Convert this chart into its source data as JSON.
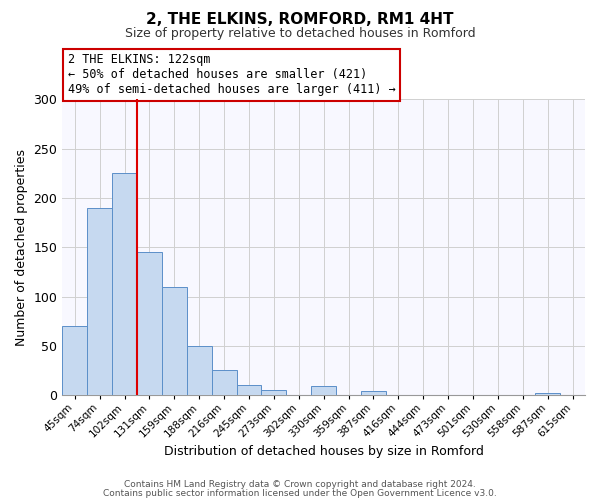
{
  "title": "2, THE ELKINS, ROMFORD, RM1 4HT",
  "subtitle": "Size of property relative to detached houses in Romford",
  "xlabel": "Distribution of detached houses by size in Romford",
  "ylabel": "Number of detached properties",
  "bar_labels": [
    "45sqm",
    "74sqm",
    "102sqm",
    "131sqm",
    "159sqm",
    "188sqm",
    "216sqm",
    "245sqm",
    "273sqm",
    "302sqm",
    "330sqm",
    "359sqm",
    "387sqm",
    "416sqm",
    "444sqm",
    "473sqm",
    "501sqm",
    "530sqm",
    "558sqm",
    "587sqm",
    "615sqm"
  ],
  "bar_values": [
    70,
    190,
    225,
    145,
    110,
    50,
    25,
    10,
    5,
    0,
    9,
    0,
    4,
    0,
    0,
    0,
    0,
    0,
    0,
    2,
    0
  ],
  "bar_color": "#c6d9f0",
  "bar_edge_color": "#5b8fc9",
  "vline_x": 2.5,
  "vline_color": "#dd0000",
  "annotation_title": "2 THE ELKINS: 122sqm",
  "annotation_line1": "← 50% of detached houses are smaller (421)",
  "annotation_line2": "49% of semi-detached houses are larger (411) →",
  "annotation_box_color": "#ffffff",
  "annotation_box_edge": "#cc0000",
  "ylim": [
    0,
    300
  ],
  "yticks": [
    0,
    50,
    100,
    150,
    200,
    250,
    300
  ],
  "footer1": "Contains HM Land Registry data © Crown copyright and database right 2024.",
  "footer2": "Contains public sector information licensed under the Open Government Licence v3.0."
}
